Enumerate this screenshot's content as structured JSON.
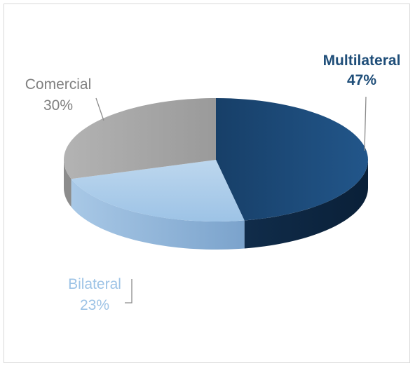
{
  "chart_data": {
    "type": "pie",
    "style": "3d",
    "slices": [
      {
        "label": "Multilateral",
        "value": 47,
        "value_text": "47%",
        "color": "#1c4a78",
        "dark": "#0f2f52",
        "label_color": "#1f4e79"
      },
      {
        "label": "Bilateral",
        "value": 23,
        "value_text": "23%",
        "color": "#9dc3e6",
        "dark": "#7ea7cc",
        "label_color": "#9dc3e6"
      },
      {
        "label": "Comercial",
        "value": 30,
        "value_text": "30%",
        "color": "#a6a6a6",
        "dark": "#8c8c8c",
        "label_color": "#808080"
      }
    ],
    "title": "",
    "legend": "none"
  }
}
